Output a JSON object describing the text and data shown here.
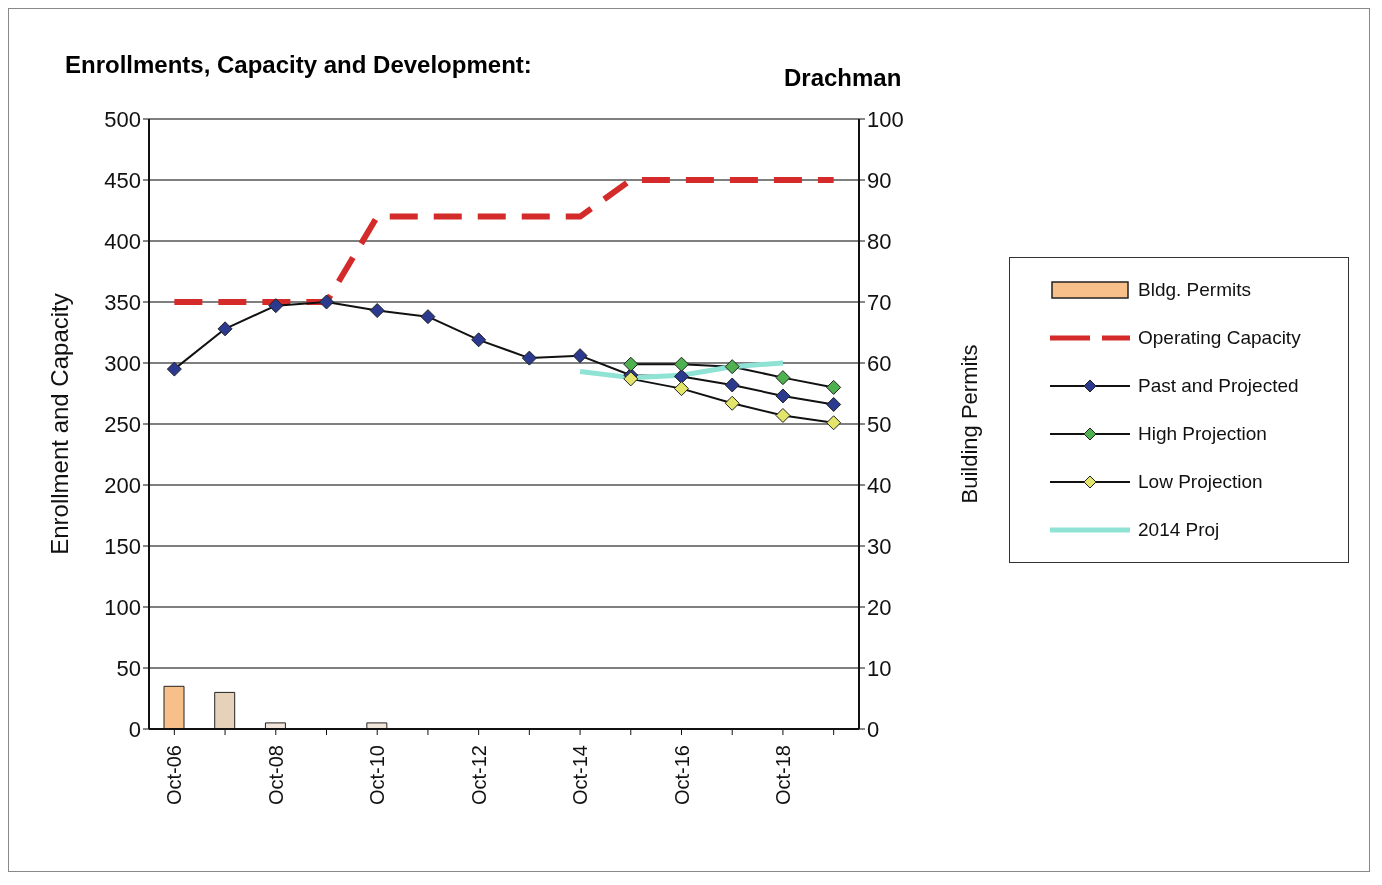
{
  "chart_data": {
    "type": "line",
    "title": "Enrollments, Capacity and Development:",
    "subtitle": "Drachman",
    "categories": [
      "Oct-06",
      null,
      "Oct-08",
      null,
      "Oct-10",
      null,
      "Oct-12",
      null,
      "Oct-14",
      null,
      "Oct-16",
      null,
      "Oct-18",
      null
    ],
    "ylabel": "Enrollment and Capacity",
    "y2label": "Building Permits",
    "ylim": [
      0,
      500
    ],
    "yticks": [
      0,
      50,
      100,
      150,
      200,
      250,
      300,
      350,
      400,
      450,
      500
    ],
    "y2lim": [
      0,
      100
    ],
    "y2ticks": [
      0,
      10,
      20,
      30,
      40,
      50,
      60,
      70,
      80,
      90,
      100
    ],
    "grid": "y",
    "legend": "right",
    "series": [
      {
        "name": "Bldg. Permits",
        "type": "bar",
        "axis": "y2",
        "color": "#f7c08a",
        "colors": [
          "#f7c08a",
          "#e6d2bb",
          "#f2e6da",
          null,
          "#f2e6da",
          null,
          null,
          null,
          null,
          null,
          null,
          null,
          null,
          null
        ],
        "values": [
          7,
          6,
          1,
          null,
          1,
          null,
          null,
          null,
          null,
          null,
          null,
          null,
          null,
          null
        ]
      },
      {
        "name": "Operating Capacity",
        "color": "#d42a2a",
        "line_style": "dashed",
        "marker": "none",
        "values": [
          350,
          350,
          350,
          350,
          420,
          420,
          420,
          420,
          420,
          450,
          450,
          450,
          450,
          450
        ]
      },
      {
        "name": "Past and Projected",
        "color": "#2b3a8f",
        "marker": "diamond",
        "values": [
          295,
          328,
          347,
          350,
          343,
          338,
          319,
          304,
          306,
          290,
          289,
          282,
          273,
          266
        ]
      },
      {
        "name": "High Projection",
        "color": "#4fb04f",
        "marker": "diamond",
        "values": [
          null,
          null,
          null,
          null,
          null,
          null,
          null,
          null,
          null,
          299,
          299,
          297,
          288,
          280
        ]
      },
      {
        "name": "Low Projection",
        "color": "#e3e56a",
        "marker": "diamond",
        "values": [
          null,
          null,
          null,
          null,
          null,
          null,
          null,
          null,
          null,
          287,
          279,
          267,
          257,
          251
        ]
      },
      {
        "name": "2014 Proj",
        "color": "#8fe3d4",
        "marker": "none",
        "values": [
          null,
          null,
          null,
          null,
          null,
          null,
          null,
          null,
          293,
          288,
          290,
          297,
          300,
          null
        ]
      }
    ]
  }
}
